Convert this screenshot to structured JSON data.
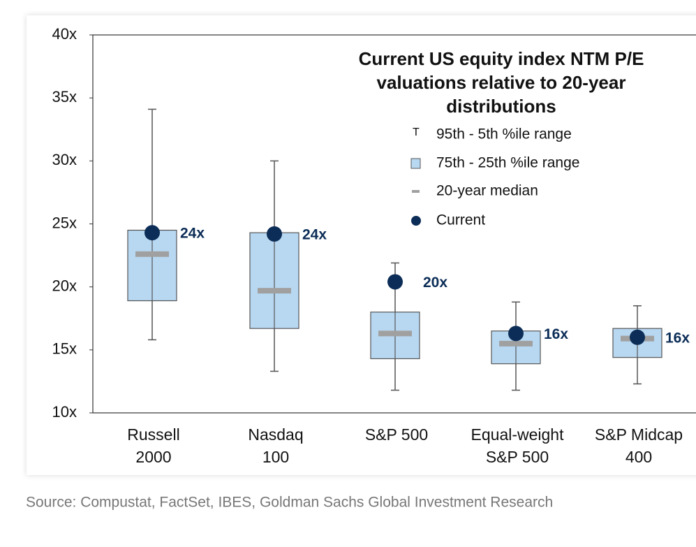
{
  "chart_data": {
    "type": "box",
    "title": [
      "Current US equity index NTM P/E",
      "valuations relative to 20-year",
      "distributions"
    ],
    "legend": {
      "whisker": "95th - 5th %ile range",
      "box": "75th - 25th %ile range",
      "median": "20-year median",
      "current": "Current"
    },
    "categories": [
      [
        "Russell",
        "2000"
      ],
      [
        "Nasdaq",
        "100"
      ],
      [
        "S&P 500"
      ],
      [
        "Equal-weight",
        "S&P 500"
      ],
      [
        "S&P Midcap",
        "400"
      ]
    ],
    "boxes": [
      {
        "whisker_high": 34.1,
        "q3": 24.5,
        "median": 22.6,
        "q1": 18.9,
        "whisker_low": 15.8,
        "current": 24.3,
        "current_label": "24x"
      },
      {
        "whisker_high": 30.0,
        "q3": 24.3,
        "median": 19.7,
        "q1": 16.7,
        "whisker_low": 13.3,
        "current": 24.2,
        "current_label": "24x"
      },
      {
        "whisker_high": 21.9,
        "q3": 18.0,
        "median": 16.3,
        "q1": 14.3,
        "whisker_low": 11.8,
        "current": 20.4,
        "current_label": "20x"
      },
      {
        "whisker_high": 18.8,
        "q3": 16.5,
        "median": 15.5,
        "q1": 13.9,
        "whisker_low": 11.8,
        "current": 16.3,
        "current_label": "16x"
      },
      {
        "whisker_high": 18.5,
        "q3": 16.7,
        "median": 15.9,
        "q1": 14.4,
        "whisker_low": 12.3,
        "current": 16.0,
        "current_label": "16x"
      }
    ],
    "box_color": "#b8d8f2",
    "median_color": "#a0a0a0",
    "current_color": "#0c2d57",
    "whisker_color": "#555555",
    "ylim": [
      10,
      40
    ],
    "yticks": [
      {
        "value": 10,
        "label": "10x"
      },
      {
        "value": 15,
        "label": "15x"
      },
      {
        "value": 20,
        "label": "20x"
      },
      {
        "value": 25,
        "label": "25x"
      },
      {
        "value": 30,
        "label": "30x"
      },
      {
        "value": 35,
        "label": "35x"
      },
      {
        "value": 40,
        "label": "40x"
      }
    ],
    "source": "Source: Compustat, FactSet, IBES, Goldman Sachs Global Investment Research"
  }
}
